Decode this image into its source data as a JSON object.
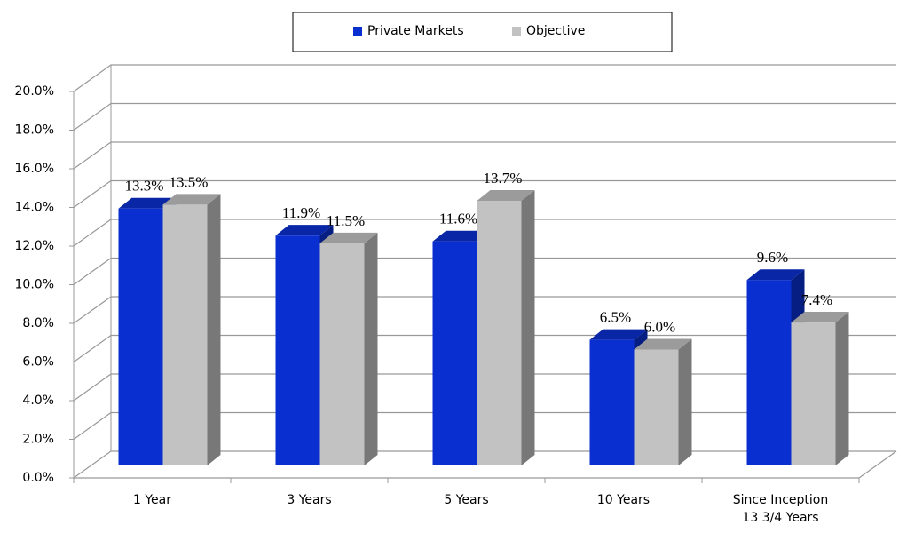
{
  "chart_data": {
    "type": "bar3d",
    "categories": [
      "1 Year",
      "3 Years",
      "5 Years",
      "10 Years",
      "Since Inception\n13 3/4 Years"
    ],
    "series": [
      {
        "name": "Private Markets",
        "color": "#0a2fd0",
        "values": [
          13.3,
          11.9,
          11.6,
          6.5,
          9.6
        ],
        "value_labels": [
          "13.3%",
          "11.9%",
          "11.6%",
          "6.5%",
          "9.6%"
        ]
      },
      {
        "name": "Objective",
        "color": "#c2c2c2",
        "values": [
          13.5,
          11.5,
          13.7,
          6.0,
          7.4
        ],
        "value_labels": [
          "13.5%",
          "11.5%",
          "13.7%",
          "6.0%",
          "7.4%"
        ]
      }
    ],
    "ylim": [
      0,
      20
    ],
    "yticks": [
      {
        "value": 0,
        "label": "0.0%"
      },
      {
        "value": 2,
        "label": "2.0%"
      },
      {
        "value": 4,
        "label": "4.0%"
      },
      {
        "value": 6,
        "label": "6.0%"
      },
      {
        "value": 8,
        "label": "8.0%"
      },
      {
        "value": 10,
        "label": "10.0%"
      },
      {
        "value": 12,
        "label": "12.0%"
      },
      {
        "value": 14,
        "label": "14.0%"
      },
      {
        "value": 16,
        "label": "16.0%"
      },
      {
        "value": 18,
        "label": "18.0%"
      },
      {
        "value": 20,
        "label": "20.0%"
      }
    ],
    "grid": true,
    "legend": "top"
  }
}
